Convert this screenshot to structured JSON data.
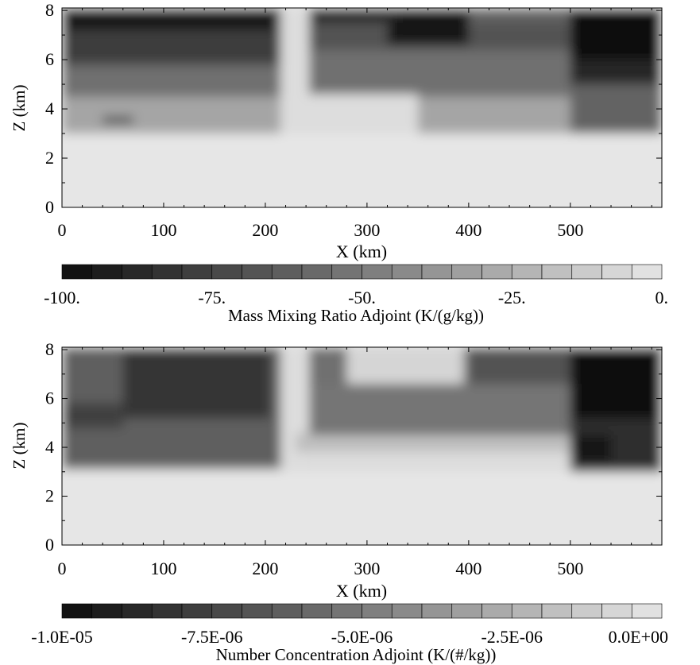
{
  "chart_data": [
    {
      "type": "heatmap",
      "title": "",
      "xlabel": "X (km)",
      "ylabel": "Z (km)",
      "xlim": [
        0,
        590
      ],
      "ylim": [
        0,
        8.1
      ],
      "x_ticks": [
        "0",
        "100",
        "200",
        "300",
        "400",
        "500"
      ],
      "y_ticks": [
        "0",
        "2",
        "4",
        "6",
        "8"
      ],
      "colorbar": {
        "label": "Mass Mixing Ratio Adjoint (K/(g/kg))",
        "range": [
          -100,
          0
        ],
        "levels": 20,
        "tick_values": [
          -100,
          -75,
          -50,
          -25,
          0
        ],
        "tick_labels": [
          "-100.",
          "-75.",
          "-50.",
          "-25.",
          "0."
        ]
      },
      "field": {
        "background_value": 0,
        "regions": [
          {
            "x": [
              0,
              590
            ],
            "z": [
              3.0,
              8.1
            ],
            "value": -30
          },
          {
            "x": [
              0,
              500
            ],
            "z": [
              4.5,
              8.1
            ],
            "value": -55
          },
          {
            "x": [
              0,
              215
            ],
            "z": [
              5.8,
              8.1
            ],
            "value": -78
          },
          {
            "x": [
              0,
              210
            ],
            "z": [
              7.2,
              8.1
            ],
            "value": -96
          },
          {
            "x": [
              40,
              70
            ],
            "z": [
              3.4,
              3.7
            ],
            "value": -70
          },
          {
            "x": [
              215,
              243
            ],
            "z": [
              3.0,
              8.1
            ],
            "value": -4
          },
          {
            "x": [
              243,
              350
            ],
            "z": [
              3.0,
              4.6
            ],
            "value": -4
          },
          {
            "x": [
              243,
              500
            ],
            "z": [
              6.4,
              7.6
            ],
            "value": -68
          },
          {
            "x": [
              320,
              400
            ],
            "z": [
              6.6,
              8.1
            ],
            "value": -97
          },
          {
            "x": [
              245,
              330
            ],
            "z": [
              7.5,
              8.1
            ],
            "value": -88
          },
          {
            "x": [
              400,
              500
            ],
            "z": [
              7.5,
              8.1
            ],
            "value": -60
          },
          {
            "x": [
              500,
              590
            ],
            "z": [
              3.0,
              8.1
            ],
            "value": -60
          },
          {
            "x": [
              500,
              590
            ],
            "z": [
              5.0,
              8.1
            ],
            "value": -88
          },
          {
            "x": [
              500,
              590
            ],
            "z": [
              6.0,
              8.1
            ],
            "value": -99
          }
        ]
      }
    },
    {
      "type": "heatmap",
      "title": "",
      "xlabel": "X (km)",
      "ylabel": "Z (km)",
      "xlim": [
        0,
        590
      ],
      "ylim": [
        0,
        8.1
      ],
      "x_ticks": [
        "0",
        "100",
        "200",
        "300",
        "400",
        "500"
      ],
      "y_ticks": [
        "0",
        "2",
        "4",
        "6",
        "8"
      ],
      "colorbar": {
        "label": "Number Concentration Adjoint (K/(#/kg))",
        "range": [
          -1e-05,
          0
        ],
        "levels": 20,
        "tick_values": [
          -1e-05,
          -7.5e-06,
          -5e-06,
          -2.5e-06,
          0
        ],
        "tick_labels": [
          "-1.0E-05",
          "-7.5E-06",
          "-5.0E-06",
          "-2.5E-06",
          "0.0E+00"
        ]
      },
      "field": {
        "background_value": 0,
        "regions": [
          {
            "x": [
              0,
              590
            ],
            "z": [
              3.1,
              8.1
            ],
            "value": -5.5e-06
          },
          {
            "x": [
              0,
              215
            ],
            "z": [
              3.3,
              8.1
            ],
            "value": -6.2e-06
          },
          {
            "x": [
              75,
              185
            ],
            "z": [
              5.6,
              7.8
            ],
            "value": -9.8e-06
          },
          {
            "x": [
              60,
              205
            ],
            "z": [
              5.2,
              8.0
            ],
            "value": -8.2e-06
          },
          {
            "x": [
              0,
              60
            ],
            "z": [
              4.8,
              5.8
            ],
            "value": -7.6e-06
          },
          {
            "x": [
              215,
              243
            ],
            "z": [
              3.0,
              8.1
            ],
            "value": -4e-07
          },
          {
            "x": [
              243,
              590
            ],
            "z": [
              3.0,
              4.5
            ],
            "value": -4e-07
          },
          {
            "x": [
              230,
              590
            ],
            "z": [
              3.8,
              4.6
            ],
            "value": -1.8e-06
          },
          {
            "x": [
              243,
              500
            ],
            "z": [
              4.5,
              6.6
            ],
            "value": -5.2e-06
          },
          {
            "x": [
              280,
              395
            ],
            "z": [
              6.6,
              8.1
            ],
            "value": -8e-07
          },
          {
            "x": [
              400,
              500
            ],
            "z": [
              6.6,
              8.1
            ],
            "value": -6.8e-06
          },
          {
            "x": [
              500,
              590
            ],
            "z": [
              3.0,
              8.1
            ],
            "value": -8.5e-06
          },
          {
            "x": [
              500,
              590
            ],
            "z": [
              5.2,
              8.1
            ],
            "value": -9.9e-06
          },
          {
            "x": [
              500,
              540
            ],
            "z": [
              3.4,
              4.5
            ],
            "value": -9.6e-06
          }
        ]
      }
    }
  ]
}
